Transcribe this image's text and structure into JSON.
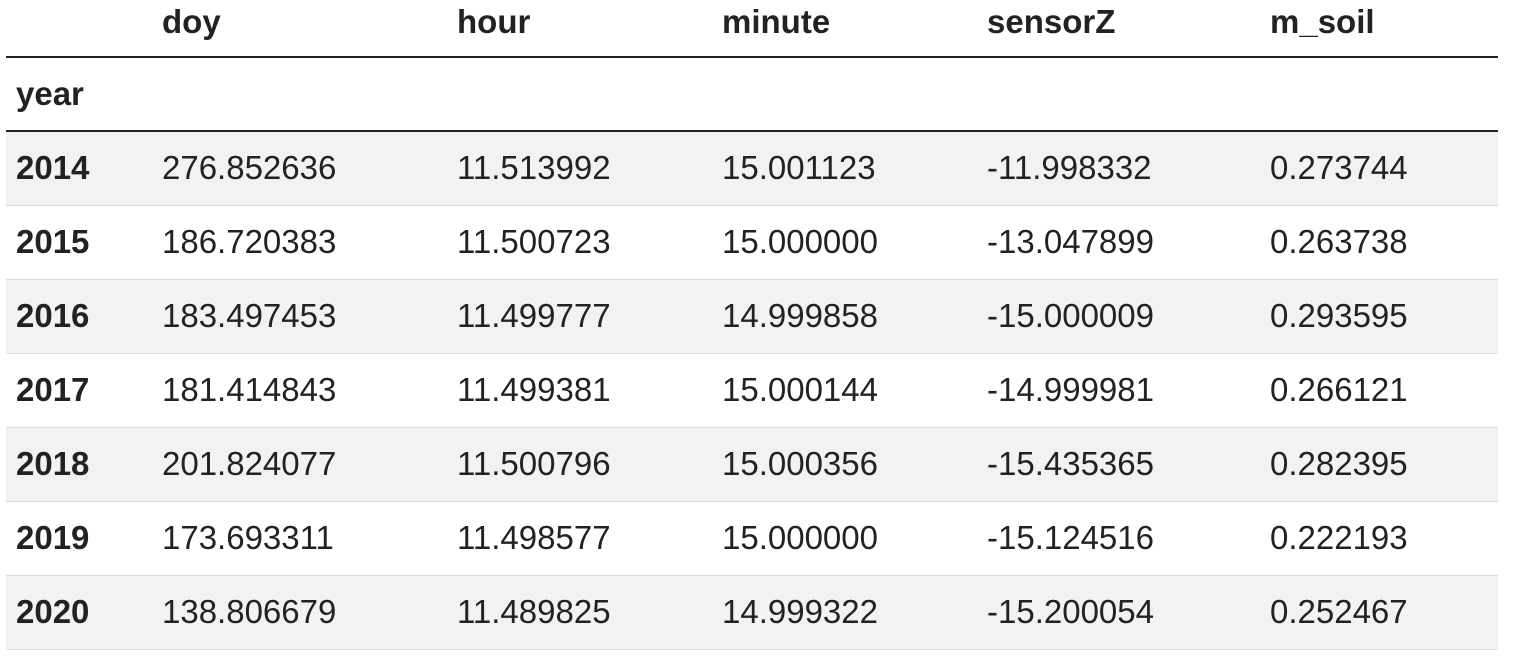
{
  "table": {
    "index_name": "year",
    "columns": [
      "doy",
      "hour",
      "minute",
      "sensorZ",
      "m_soil"
    ],
    "rows": [
      {
        "year": "2014",
        "values": [
          "276.852636",
          "11.513992",
          "15.001123",
          "-11.998332",
          "0.273744"
        ]
      },
      {
        "year": "2015",
        "values": [
          "186.720383",
          "11.500723",
          "15.000000",
          "-13.047899",
          "0.263738"
        ]
      },
      {
        "year": "2016",
        "values": [
          "183.497453",
          "11.499777",
          "14.999858",
          "-15.000009",
          "0.293595"
        ]
      },
      {
        "year": "2017",
        "values": [
          "181.414843",
          "11.499381",
          "15.000144",
          "-14.999981",
          "0.266121"
        ]
      },
      {
        "year": "2018",
        "values": [
          "201.824077",
          "11.500796",
          "15.000356",
          "-15.435365",
          "0.282395"
        ]
      },
      {
        "year": "2019",
        "values": [
          "173.693311",
          "11.498577",
          "15.000000",
          "-15.124516",
          "0.222193"
        ]
      },
      {
        "year": "2020",
        "values": [
          "138.806679",
          "11.489825",
          "14.999322",
          "-15.200054",
          "0.252467"
        ]
      }
    ]
  },
  "colors": {
    "stripe": "#f2f2f2",
    "rule": "#222222",
    "row_border": "#dddddd"
  }
}
